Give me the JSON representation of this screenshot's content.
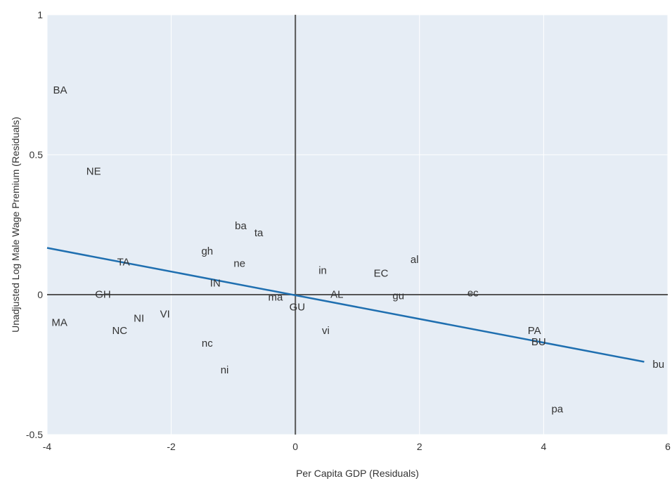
{
  "chart_data": {
    "type": "scatter",
    "title": "",
    "xlabel": "Per Capita GDP (Residuals)",
    "ylabel": "Unadjusted Log Male Wage Premium (Residuals)",
    "xlim": [
      -4,
      6
    ],
    "ylim": [
      -0.5,
      1
    ],
    "xticks": [
      -4,
      -2,
      0,
      2,
      4,
      6
    ],
    "yticks": [
      -0.5,
      0,
      0.5,
      1
    ],
    "xtick_labels": [
      "-4",
      "-2",
      "0",
      "2",
      "4",
      "6"
    ],
    "ytick_labels": [
      "-0.5",
      "0",
      "0.5",
      "1"
    ],
    "grid": true,
    "zero_lines": true,
    "plot_background": "#e6edf5",
    "grid_color": "#ffffff",
    "zero_line_color": "#555555",
    "fit_line_color": "#1f6fb0",
    "points": [
      {
        "label": "BA",
        "x": -3.79,
        "y": 0.73
      },
      {
        "label": "NE",
        "x": -3.25,
        "y": 0.44
      },
      {
        "label": "ba",
        "x": -0.88,
        "y": 0.245
      },
      {
        "label": "ta",
        "x": -0.59,
        "y": 0.22
      },
      {
        "label": "gh",
        "x": -1.42,
        "y": 0.155
      },
      {
        "label": "ne",
        "x": -0.9,
        "y": 0.11
      },
      {
        "label": "TA",
        "x": -2.77,
        "y": 0.115
      },
      {
        "label": "IN",
        "x": -1.29,
        "y": 0.04
      },
      {
        "label": "in",
        "x": 0.44,
        "y": 0.085
      },
      {
        "label": "al",
        "x": 1.92,
        "y": 0.125
      },
      {
        "label": "EC",
        "x": 1.38,
        "y": 0.075
      },
      {
        "label": "GH",
        "x": -3.1,
        "y": 0.0
      },
      {
        "label": "ma",
        "x": -0.32,
        "y": -0.01
      },
      {
        "label": "AL",
        "x": 0.67,
        "y": 0.0
      },
      {
        "label": "gu",
        "x": 1.66,
        "y": -0.005
      },
      {
        "label": "ec",
        "x": 2.86,
        "y": 0.005
      },
      {
        "label": "GU",
        "x": 0.03,
        "y": -0.045
      },
      {
        "label": "VI",
        "x": -2.1,
        "y": -0.07
      },
      {
        "label": "NI",
        "x": -2.52,
        "y": -0.085
      },
      {
        "label": "MA",
        "x": -3.8,
        "y": -0.1
      },
      {
        "label": "NC",
        "x": -2.83,
        "y": -0.13
      },
      {
        "label": "vi",
        "x": 0.49,
        "y": -0.13
      },
      {
        "label": "nc",
        "x": -1.42,
        "y": -0.175
      },
      {
        "label": "PA",
        "x": 3.85,
        "y": -0.13
      },
      {
        "label": "BU",
        "x": 3.92,
        "y": -0.17
      },
      {
        "label": "ni",
        "x": -1.14,
        "y": -0.27
      },
      {
        "label": "bu",
        "x": 5.85,
        "y": -0.25
      },
      {
        "label": "pa",
        "x": 4.22,
        "y": -0.41
      }
    ],
    "fit_line": {
      "x": [
        -4,
        5.62
      ],
      "y": [
        0.167,
        -0.24
      ]
    }
  }
}
